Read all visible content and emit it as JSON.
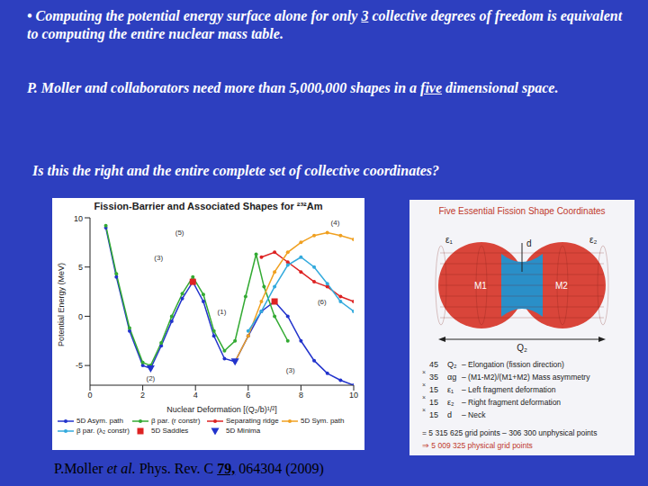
{
  "text_lines": [
    {
      "parts": [
        {
          "text": "• Computing the potential energy surface alone for only "
        },
        {
          "text": "3",
          "underline": true
        },
        {
          "text": " collective degrees of freedom is equivalent to computing the entire nuclear mass table."
        }
      ]
    },
    {
      "parts": [
        {
          "text": "P. Moller and collaborators  need more than 5,000,000 shapes  in a "
        },
        {
          "text": "five",
          "underline": true
        },
        {
          "text": " dimensional space."
        }
      ]
    },
    {
      "parts": [
        {
          "text": "Is this the right and the entire complete set of collective coordinates?"
        }
      ]
    }
  ],
  "citation": {
    "parts": [
      {
        "text": "P.Moller "
      },
      {
        "text": "et al.",
        "italic": true
      },
      {
        "text": " Phys. Rev. C "
      },
      {
        "text": "79,",
        "bold": true,
        "underline": true
      },
      {
        "text": " 064304 (2009)"
      }
    ]
  },
  "chart_data": {
    "type": "line",
    "title": "Fission-Barrier and Associated Shapes for ²³²Am",
    "x_label": "Nuclear Deformation [(Q₂/b)¹/²]",
    "y_label": "Potential Energy (MeV)",
    "xlim": [
      0,
      10
    ],
    "xticks": [
      0,
      2,
      4,
      6,
      8,
      10
    ],
    "ylim": [
      -7,
      10
    ],
    "yticks": [
      -5,
      0,
      5,
      10
    ],
    "grid": false,
    "series": [
      {
        "name": "5D Asym. path",
        "color": "#2233cc",
        "marker": "circle",
        "line_style": "solid",
        "x": [
          0.6,
          1.0,
          1.5,
          2.0,
          2.3,
          2.7,
          3.1,
          3.5,
          3.9,
          4.3,
          4.7,
          5.1,
          5.5,
          6.0,
          6.5,
          7.0,
          7.5,
          8.0,
          8.5,
          9.0,
          9.5,
          10.0
        ],
        "values": [
          9,
          4,
          -1.5,
          -5,
          -5.3,
          -3,
          -0.5,
          1.8,
          3.5,
          1.5,
          -2,
          -4.3,
          -4.6,
          -2,
          0.5,
          1.5,
          0,
          -2.5,
          -4.5,
          -5.8,
          -6.5,
          -7
        ]
      },
      {
        "name": "β par. (r constr)",
        "color": "#33aa33",
        "marker": "circle",
        "line_style": "solid",
        "x": [
          0.6,
          1.0,
          1.5,
          2.0,
          2.3,
          2.7,
          3.1,
          3.5,
          3.9,
          4.3,
          4.7,
          5.1,
          5.5,
          5.9,
          6.3,
          6.6,
          7.0,
          7.5
        ],
        "values": [
          9.2,
          4.3,
          -1.2,
          -4.7,
          -5,
          -2.7,
          0,
          2.3,
          4,
          2.2,
          -1.5,
          -3.5,
          -2.5,
          2,
          6.3,
          3,
          0,
          -2.5
        ]
      },
      {
        "name": "Separating ridge",
        "color": "#dd2222",
        "marker": "circle",
        "line_style": "solid",
        "x": [
          6.5,
          7,
          7.5,
          8,
          8.5,
          9,
          9.5,
          10
        ],
        "values": [
          6,
          6.5,
          5.5,
          4.5,
          3.5,
          3,
          2,
          1.5
        ]
      },
      {
        "name": "5D Sym. path",
        "color": "#f0a020",
        "marker": "circle",
        "line_style": "solid",
        "x": [
          5.5,
          6,
          6.5,
          7,
          7.5,
          8,
          8.5,
          9,
          9.5,
          10
        ],
        "values": [
          -4.6,
          -2,
          1.5,
          4.5,
          6.5,
          7.5,
          8.2,
          8.5,
          8.2,
          7.8
        ]
      },
      {
        "name": "β par. (λ₂ constr)",
        "color": "#33aadd",
        "marker": "circle",
        "line_style": "solid",
        "x": [
          6,
          6.5,
          7,
          7.5,
          8,
          8.5,
          9,
          9.5,
          10
        ],
        "values": [
          -1.5,
          0.5,
          3,
          5.2,
          6,
          5,
          3.3,
          1.5,
          0.5
        ]
      },
      {
        "name": "5D Saddles",
        "type": "scatter",
        "color": "#dd2222",
        "marker": "square",
        "line_style": "none",
        "x": [
          3.9,
          7.0
        ],
        "values": [
          3.5,
          1.5
        ]
      },
      {
        "name": "5D Minima",
        "type": "scatter",
        "color": "#2233cc",
        "marker": "triangle",
        "line_style": "none",
        "x": [
          2.3,
          5.5
        ],
        "values": [
          -5.3,
          -4.6
        ]
      }
    ],
    "annotations": [
      {
        "text": "(1)",
        "x": 5.0,
        "y": 0.5
      },
      {
        "text": "(2)",
        "x": 2.3,
        "y": -6.3
      },
      {
        "text": "(3)",
        "x": 2.6,
        "y": 6
      },
      {
        "text": "(5)",
        "x": 3.4,
        "y": 8.5
      },
      {
        "text": "(4)",
        "x": 9.3,
        "y": 9.5
      },
      {
        "text": "(6)",
        "x": 8.8,
        "y": 1.5
      },
      {
        "text": "(3)",
        "x": 7.6,
        "y": -5.5
      }
    ]
  },
  "diagram": {
    "title": "Five Essential Fission Shape Coordinates",
    "shape_labels": {
      "left_deformation": "ε₁",
      "right_deformation": "ε₂",
      "neck": "d",
      "left_mass": "M1",
      "right_mass": "M2",
      "elongation": "Q₂"
    },
    "operator": "×",
    "rows": [
      {
        "count": 45,
        "symbol": "Q₂",
        "description": "– Elongation (fission direction)"
      },
      {
        "count": 35,
        "symbol": "αg",
        "description": "– (M1-M2)/(M1+M2) Mass asymmetry"
      },
      {
        "count": 15,
        "symbol": "ε₁",
        "description": "– Left fragment deformation"
      },
      {
        "count": 15,
        "symbol": "ε₂",
        "description": "– Right fragment deformation"
      },
      {
        "count": 15,
        "symbol": "d",
        "description": "– Neck"
      }
    ],
    "total": "= 5 315 625 grid points – 306 300 unphysical points",
    "result": "⇒ 5 009 325 physical grid points"
  }
}
